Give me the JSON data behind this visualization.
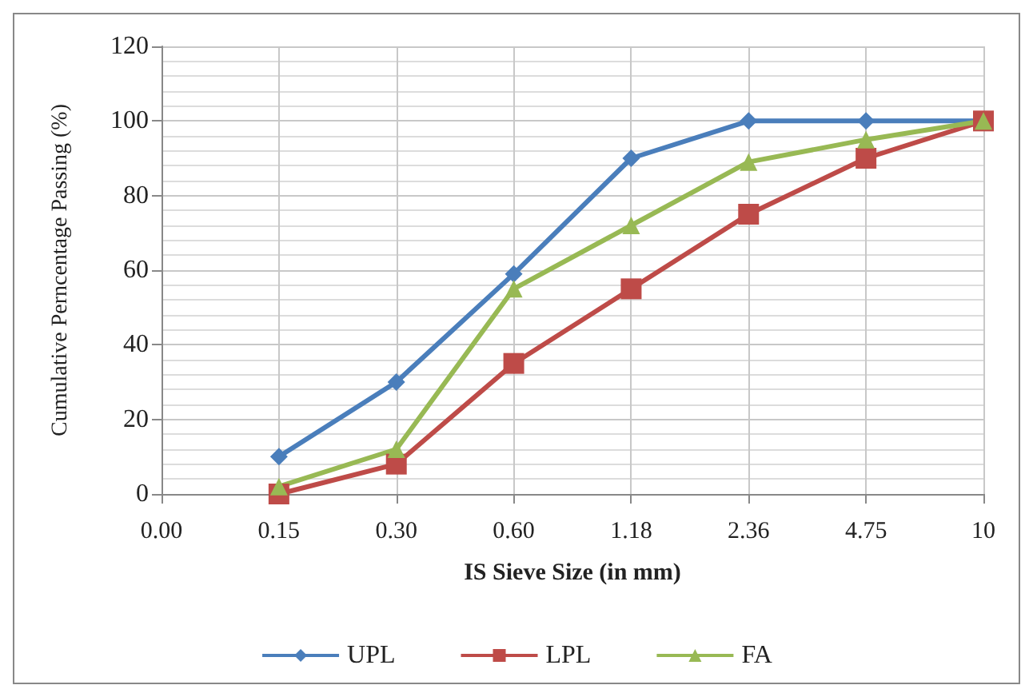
{
  "chart_data": {
    "type": "line",
    "xlabel": "IS Sieve Size (in mm)",
    "ylabel": "Cumulative Perncentage Passing (%)",
    "categories": [
      "0.00",
      "0.15",
      "0.30",
      "0.60",
      "1.18",
      "2.36",
      "4.75",
      "10"
    ],
    "series": [
      {
        "name": "UPL",
        "color": "#4a7ebb",
        "marker": "diamond",
        "values": [
          null,
          10,
          30,
          59,
          90,
          100,
          100,
          100
        ]
      },
      {
        "name": "LPL",
        "color": "#be4b48",
        "marker": "square",
        "values": [
          null,
          0,
          8,
          35,
          55,
          75,
          90,
          100
        ]
      },
      {
        "name": "FA",
        "color": "#98b954",
        "marker": "triangle",
        "values": [
          null,
          2,
          12,
          55,
          72,
          89,
          95,
          100
        ]
      }
    ],
    "ylim": [
      0,
      120
    ],
    "yticks": [
      0,
      20,
      40,
      60,
      80,
      100,
      120
    ],
    "grid": true,
    "legend": "bottom"
  }
}
